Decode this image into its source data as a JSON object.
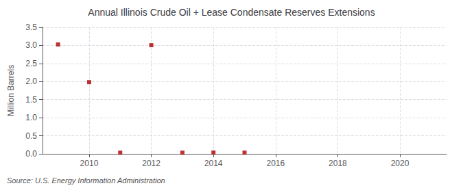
{
  "chart_data": {
    "type": "scatter",
    "title": "Annual Illinois Crude Oil + Lease Condensate Reserves Extensions",
    "ylabel": "Million Barrels",
    "source": "Source: U.S. Energy Information Administration",
    "x": [
      2009,
      2010,
      2011,
      2012,
      2013,
      2014,
      2015
    ],
    "values": [
      3.026,
      1.983,
      0.031,
      3.006,
      0.031,
      0.034,
      0.032
    ],
    "color": "#aa0000",
    "marker": "square",
    "xlim": [
      2008.5,
      2021.5
    ],
    "xticks": [
      2010,
      2012,
      2014,
      2016,
      2018,
      2020
    ],
    "ylim": [
      0,
      3.5
    ],
    "yticks": [
      {
        "value": 0,
        "label": "0.0"
      },
      0.5,
      {
        "value": 1,
        "label": "1.0"
      },
      1.5,
      {
        "value": 2,
        "label": "2.0"
      },
      2.5,
      {
        "value": 3,
        "label": "3.0"
      },
      3.5
    ],
    "grid": true
  }
}
